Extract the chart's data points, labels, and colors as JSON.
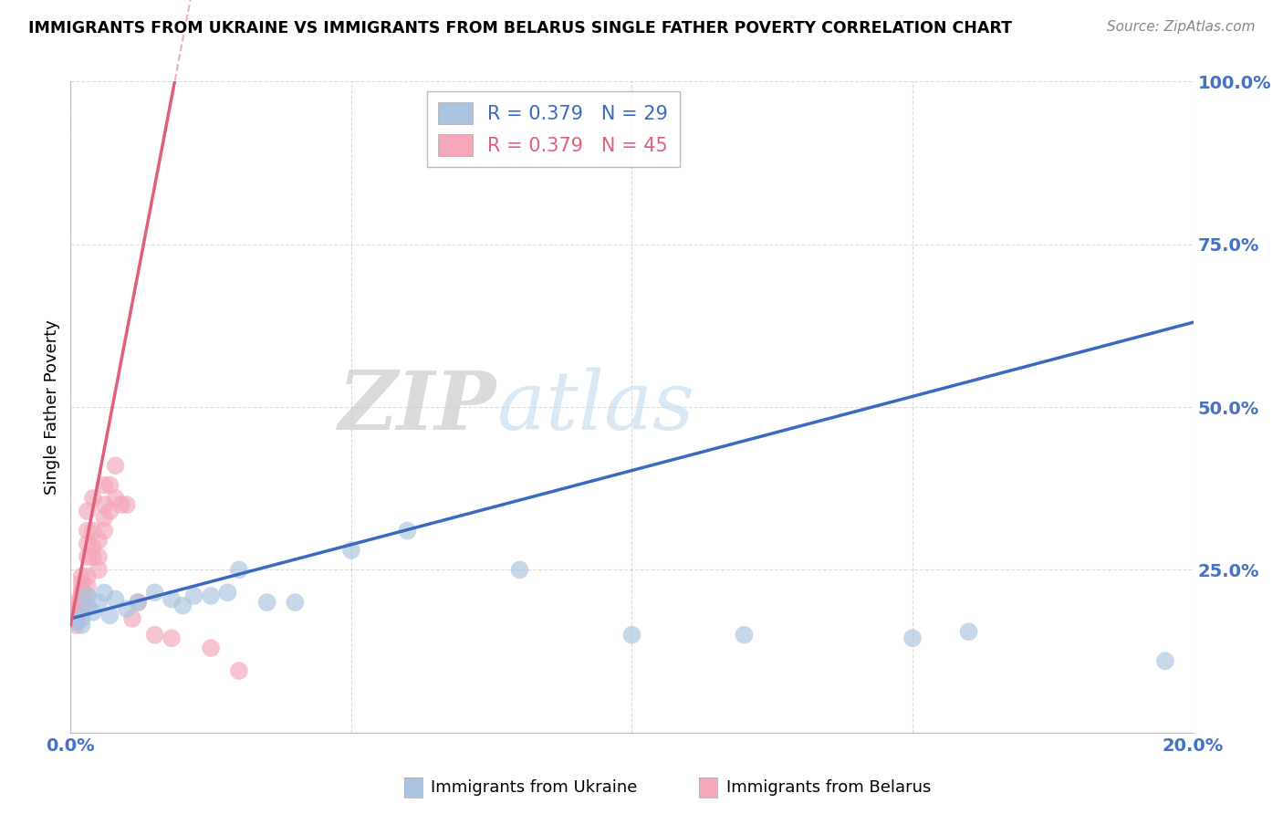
{
  "title": "IMMIGRANTS FROM UKRAINE VS IMMIGRANTS FROM BELARUS SINGLE FATHER POVERTY CORRELATION CHART",
  "source": "Source: ZipAtlas.com",
  "xlabel_ukraine": "Immigrants from Ukraine",
  "xlabel_belarus": "Immigrants from Belarus",
  "ylabel": "Single Father Poverty",
  "xlim": [
    0,
    0.2
  ],
  "ylim": [
    0,
    1.0
  ],
  "xticks": [
    0.0,
    0.05,
    0.1,
    0.15,
    0.2
  ],
  "yticks": [
    0.0,
    0.25,
    0.5,
    0.75,
    1.0
  ],
  "R_ukraine": 0.379,
  "N_ukraine": 29,
  "R_belarus": 0.379,
  "N_belarus": 45,
  "ukraine_color": "#a8c4e0",
  "belarus_color": "#f4a7b9",
  "ukraine_line_color": "#3a6abf",
  "belarus_line_color": "#e0607a",
  "ukraine_points_x": [
    0.001,
    0.002,
    0.002,
    0.003,
    0.003,
    0.004,
    0.005,
    0.006,
    0.007,
    0.008,
    0.01,
    0.012,
    0.015,
    0.018,
    0.02,
    0.022,
    0.025,
    0.028,
    0.03,
    0.035,
    0.04,
    0.05,
    0.06,
    0.08,
    0.1,
    0.12,
    0.15,
    0.16,
    0.195
  ],
  "ukraine_points_y": [
    0.17,
    0.165,
    0.175,
    0.195,
    0.21,
    0.185,
    0.2,
    0.215,
    0.18,
    0.205,
    0.19,
    0.2,
    0.215,
    0.205,
    0.195,
    0.21,
    0.21,
    0.215,
    0.25,
    0.2,
    0.2,
    0.28,
    0.31,
    0.25,
    0.15,
    0.15,
    0.145,
    0.155,
    0.11
  ],
  "belarus_points_x": [
    0.001,
    0.001,
    0.001,
    0.001,
    0.001,
    0.001,
    0.001,
    0.001,
    0.002,
    0.002,
    0.002,
    0.002,
    0.002,
    0.002,
    0.002,
    0.003,
    0.003,
    0.003,
    0.003,
    0.003,
    0.003,
    0.003,
    0.004,
    0.004,
    0.004,
    0.004,
    0.005,
    0.005,
    0.005,
    0.006,
    0.006,
    0.006,
    0.006,
    0.007,
    0.007,
    0.008,
    0.008,
    0.009,
    0.01,
    0.011,
    0.012,
    0.015,
    0.018,
    0.025,
    0.03
  ],
  "belarus_points_y": [
    0.165,
    0.17,
    0.175,
    0.18,
    0.185,
    0.19,
    0.195,
    0.2,
    0.19,
    0.2,
    0.21,
    0.215,
    0.22,
    0.23,
    0.24,
    0.21,
    0.225,
    0.24,
    0.27,
    0.29,
    0.31,
    0.34,
    0.27,
    0.285,
    0.31,
    0.36,
    0.25,
    0.27,
    0.295,
    0.31,
    0.33,
    0.35,
    0.38,
    0.34,
    0.38,
    0.36,
    0.41,
    0.35,
    0.35,
    0.175,
    0.2,
    0.15,
    0.145,
    0.13,
    0.095
  ],
  "ukraine_line_x0": 0.0,
  "ukraine_line_y0": 0.175,
  "ukraine_line_x1": 0.2,
  "ukraine_line_y1": 0.63,
  "belarus_line_x0": 0.0,
  "belarus_line_y0": 0.165,
  "belarus_line_x1": 0.013,
  "belarus_line_y1": 0.75,
  "watermark_zip": "ZIP",
  "watermark_atlas": "atlas",
  "background_color": "#ffffff",
  "grid_color": "#cccccc"
}
